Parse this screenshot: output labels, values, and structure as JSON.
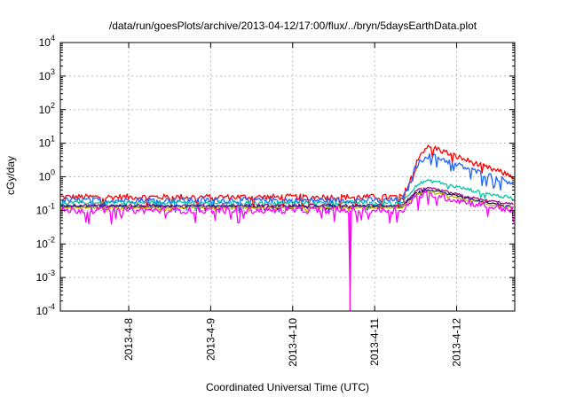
{
  "chart_data": {
    "type": "line",
    "title": "/data/run/goesPlots/archive/2013-04-12/17:00/flux/../bryn/5daysEarthData.plot",
    "xlabel": "Coordinated Universal Time (UTC)",
    "ylabel": "cGy/day",
    "yscale": "log",
    "ylim": [
      0.0001,
      10000
    ],
    "y_ticks": [
      {
        "value": 0.0001,
        "base": "10",
        "exp": "-4"
      },
      {
        "value": 0.001,
        "base": "10",
        "exp": "-3"
      },
      {
        "value": 0.01,
        "base": "10",
        "exp": "-2"
      },
      {
        "value": 0.1,
        "base": "10",
        "exp": "-1"
      },
      {
        "value": 1,
        "base": "10",
        "exp": "0"
      },
      {
        "value": 10,
        "base": "10",
        "exp": "1"
      },
      {
        "value": 100,
        "base": "10",
        "exp": "2"
      },
      {
        "value": 1000,
        "base": "10",
        "exp": "3"
      },
      {
        "value": 10000,
        "base": "10",
        "exp": "4"
      }
    ],
    "xlim": [
      "2013-04-07 04:00",
      "2013-04-12 17:00"
    ],
    "x_ticks": [
      {
        "value": "2013-04-08 00:00",
        "label": "2013-4-8"
      },
      {
        "value": "2013-04-09 00:00",
        "label": "2013-4-9"
      },
      {
        "value": "2013-04-10 00:00",
        "label": "2013-4-10"
      },
      {
        "value": "2013-04-11 00:00",
        "label": "2013-4-11"
      },
      {
        "value": "2013-04-12 00:00",
        "label": "2013-4-12"
      }
    ],
    "grid": true,
    "legend": "none",
    "series": [
      {
        "color": "#ff0000",
        "baseline": 0.25,
        "noise": 0.35,
        "points": [
          [
            "2013-04-07 04:00",
            0.25
          ],
          [
            "2013-04-11 08:00",
            0.25
          ],
          [
            "2013-04-11 10:00",
            0.6
          ],
          [
            "2013-04-11 12:00",
            3.0
          ],
          [
            "2013-04-11 15:00",
            7.5
          ],
          [
            "2013-04-11 18:00",
            7.0
          ],
          [
            "2013-04-12 00:00",
            4.0
          ],
          [
            "2013-04-12 08:00",
            2.0
          ],
          [
            "2013-04-12 17:00",
            1.0
          ]
        ]
      },
      {
        "color": "#1e64ff",
        "baseline": 0.2,
        "noise": 0.35,
        "points": [
          [
            "2013-04-07 04:00",
            0.2
          ],
          [
            "2013-04-11 08:00",
            0.2
          ],
          [
            "2013-04-11 10:00",
            0.5
          ],
          [
            "2013-04-11 12:00",
            2.0
          ],
          [
            "2013-04-11 15:00",
            4.2
          ],
          [
            "2013-04-11 18:00",
            4.0
          ],
          [
            "2013-04-12 00:00",
            2.3
          ],
          [
            "2013-04-12 08:00",
            1.2
          ],
          [
            "2013-04-12 17:00",
            0.65
          ]
        ]
      },
      {
        "color": "#00c8a0",
        "baseline": 0.17,
        "noise": 0.2,
        "points": [
          [
            "2013-04-07 04:00",
            0.17
          ],
          [
            "2013-04-11 08:00",
            0.17
          ],
          [
            "2013-04-11 10:00",
            0.3
          ],
          [
            "2013-04-11 12:00",
            0.55
          ],
          [
            "2013-04-11 15:00",
            0.75
          ],
          [
            "2013-04-11 18:00",
            0.72
          ],
          [
            "2013-04-12 00:00",
            0.5
          ],
          [
            "2013-04-12 08:00",
            0.33
          ],
          [
            "2013-04-12 17:00",
            0.22
          ]
        ]
      },
      {
        "color": "#aa0077",
        "baseline": 0.14,
        "noise": 0.15,
        "points": [
          [
            "2013-04-07 04:00",
            0.14
          ],
          [
            "2013-04-11 08:00",
            0.14
          ],
          [
            "2013-04-11 10:00",
            0.22
          ],
          [
            "2013-04-11 12:00",
            0.38
          ],
          [
            "2013-04-11 15:00",
            0.45
          ],
          [
            "2013-04-11 18:00",
            0.42
          ],
          [
            "2013-04-12 00:00",
            0.3
          ],
          [
            "2013-04-12 08:00",
            0.2
          ],
          [
            "2013-04-12 17:00",
            0.15
          ]
        ]
      },
      {
        "color": "#0a1e78",
        "baseline": 0.13,
        "noise": 0.12,
        "points": [
          [
            "2013-04-07 04:00",
            0.13
          ],
          [
            "2013-04-11 08:00",
            0.13
          ],
          [
            "2013-04-11 10:00",
            0.2
          ],
          [
            "2013-04-11 12:00",
            0.34
          ],
          [
            "2013-04-11 15:00",
            0.4
          ],
          [
            "2013-04-11 18:00",
            0.38
          ],
          [
            "2013-04-12 00:00",
            0.27
          ],
          [
            "2013-04-12 08:00",
            0.18
          ],
          [
            "2013-04-12 17:00",
            0.13
          ]
        ]
      },
      {
        "color": "#c8b400",
        "baseline": 0.12,
        "noise": 0.12,
        "points": [
          [
            "2013-04-07 04:00",
            0.12
          ],
          [
            "2013-04-11 08:00",
            0.12
          ],
          [
            "2013-04-11 10:00",
            0.18
          ],
          [
            "2013-04-11 12:00",
            0.3
          ],
          [
            "2013-04-11 15:00",
            0.36
          ],
          [
            "2013-04-11 18:00",
            0.34
          ],
          [
            "2013-04-12 00:00",
            0.24
          ],
          [
            "2013-04-12 08:00",
            0.16
          ],
          [
            "2013-04-12 17:00",
            0.12
          ]
        ]
      },
      {
        "color": "#ff00ff",
        "baseline": 0.1,
        "noise": 0.4,
        "points": [
          [
            "2013-04-07 04:00",
            0.1
          ],
          [
            "2013-04-10 16:30",
            0.1
          ],
          [
            "2013-04-10 16:45",
            0.0001
          ],
          [
            "2013-04-10 17:00",
            0.1
          ],
          [
            "2013-04-11 08:00",
            0.1
          ],
          [
            "2013-04-11 10:00",
            0.15
          ],
          [
            "2013-04-11 12:00",
            0.25
          ],
          [
            "2013-04-11 15:00",
            0.3
          ],
          [
            "2013-04-11 18:00",
            0.28
          ],
          [
            "2013-04-12 00:00",
            0.2
          ],
          [
            "2013-04-12 08:00",
            0.14
          ],
          [
            "2013-04-12 17:00",
            0.1
          ]
        ]
      }
    ]
  }
}
